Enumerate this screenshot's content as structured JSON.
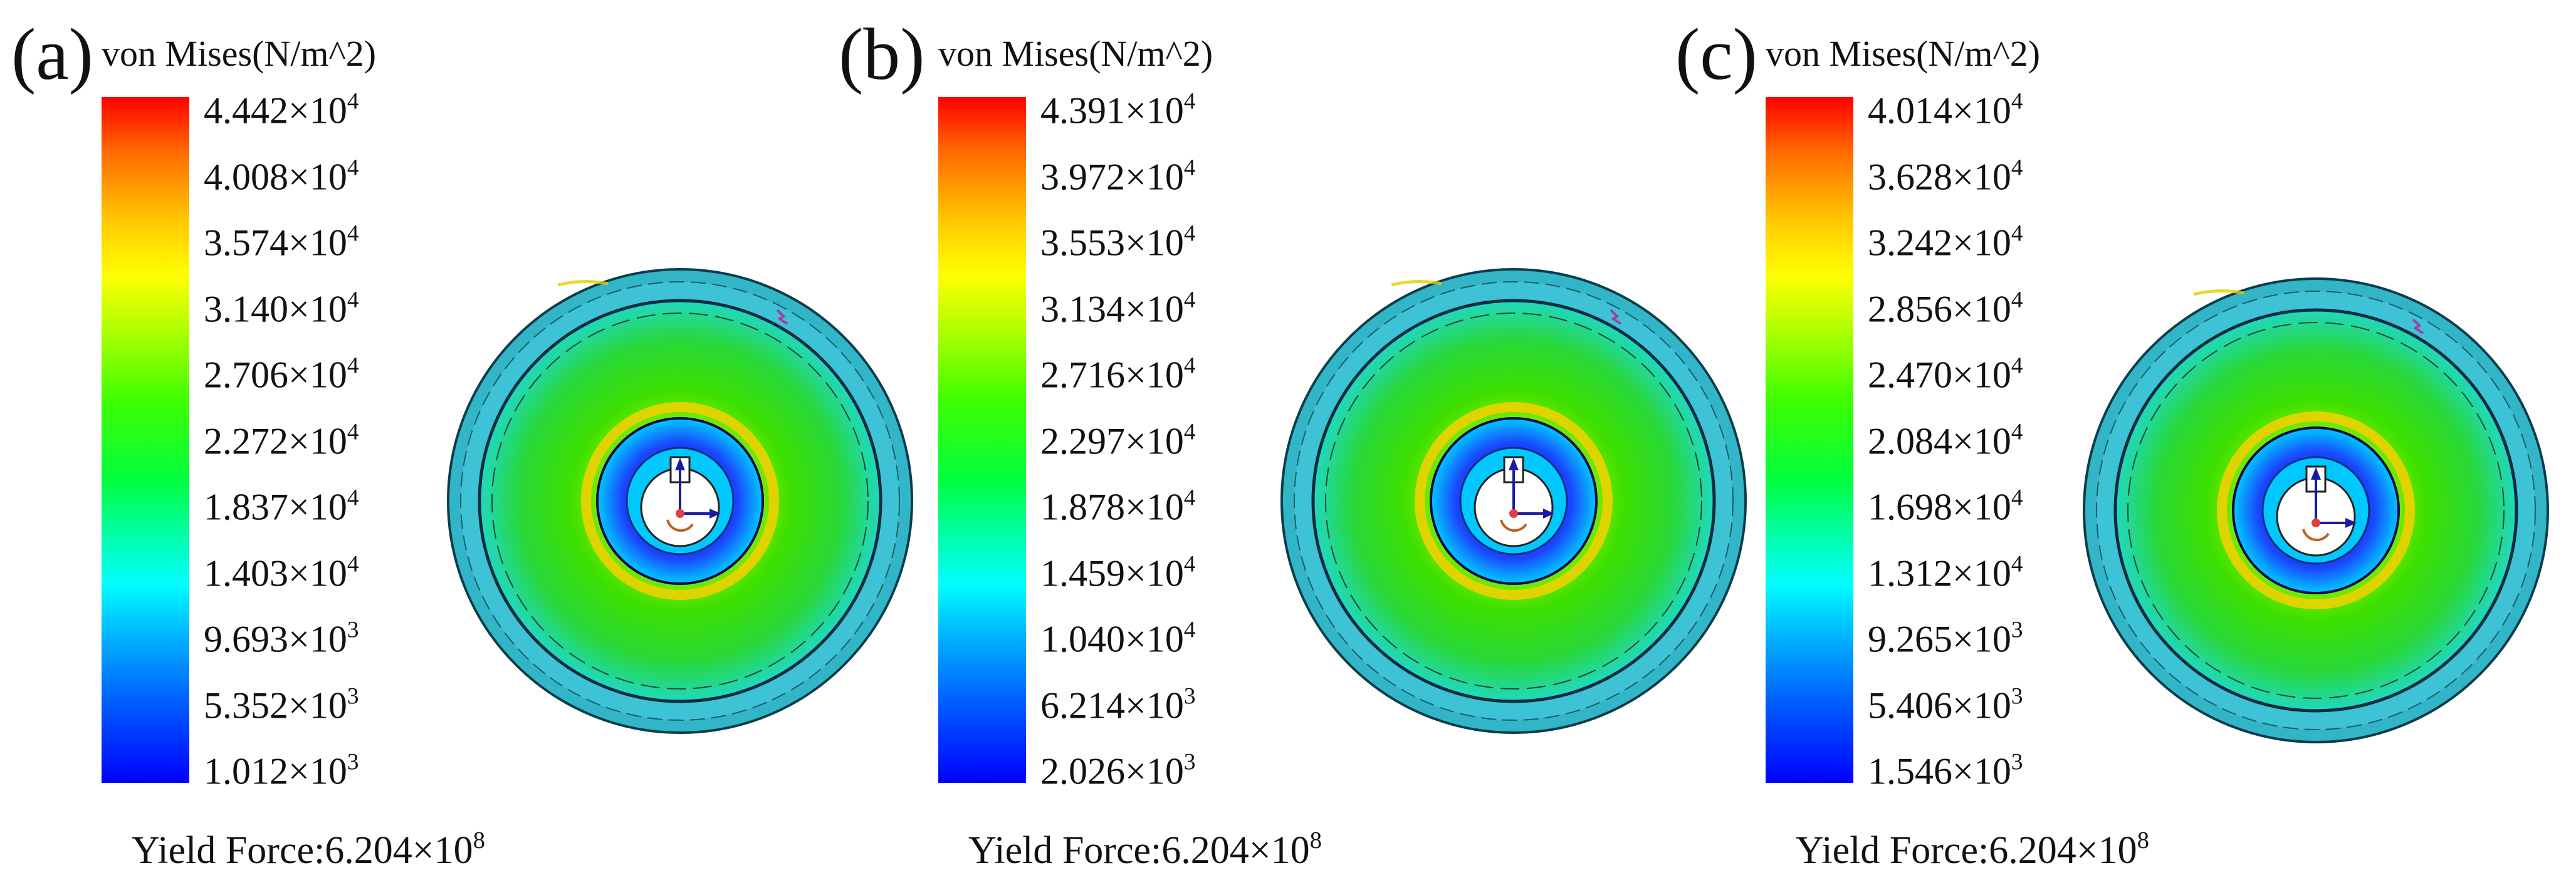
{
  "colorbar_title": "von Mises(N/m^2)",
  "yield_label": "Yield Force:",
  "panels": [
    {
      "label": "(a)",
      "ticks": [
        "4.442×10",
        "4.008×10",
        "3.574×10",
        "3.140×10",
        "2.706×10",
        "2.272×10",
        "1.837×10",
        "1.403×10",
        "9.693×10",
        "5.352×10",
        "1.012×10"
      ],
      "exponents": [
        "4",
        "4",
        "4",
        "4",
        "4",
        "4",
        "4",
        "4",
        "3",
        "3",
        "3"
      ],
      "yield_value": "6.204×10",
      "yield_exp": "8"
    },
    {
      "label": "(b)",
      "ticks": [
        "4.391×10",
        "3.972×10",
        "3.553×10",
        "3.134×10",
        "2.716×10",
        "2.297×10",
        "1.878×10",
        "1.459×10",
        "1.040×10",
        "6.214×10",
        "2.026×10"
      ],
      "exponents": [
        "4",
        "4",
        "4",
        "4",
        "4",
        "4",
        "4",
        "4",
        "4",
        "3",
        "3"
      ],
      "yield_value": "6.204×10",
      "yield_exp": "8"
    },
    {
      "label": "(c)",
      "ticks": [
        "4.014×10",
        "3.628×10",
        "3.242×10",
        "2.856×10",
        "2.470×10",
        "2.084×10",
        "1.698×10",
        "1.312×10",
        "9.265×10",
        "5.406×10",
        "1.546×10"
      ],
      "exponents": [
        "4",
        "4",
        "4",
        "4",
        "4",
        "4",
        "4",
        "4",
        "3",
        "3",
        "3"
      ],
      "yield_value": "6.204×10",
      "yield_exp": "8"
    }
  ],
  "colors": {
    "high": "#ff0000",
    "mid": "#40ff00",
    "low": "#0000ff"
  }
}
